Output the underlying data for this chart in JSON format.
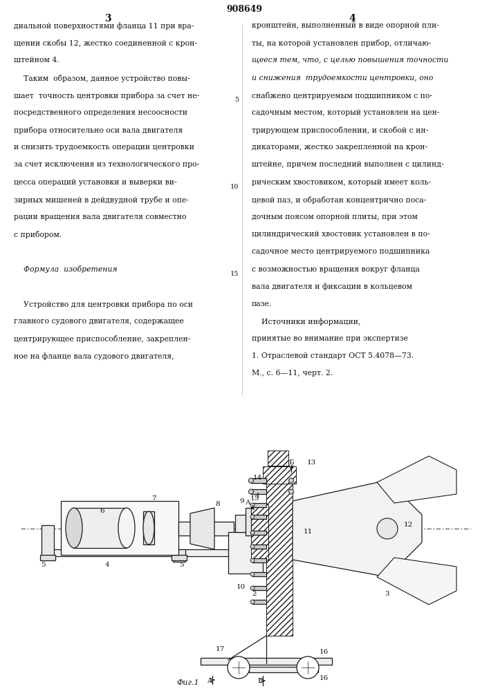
{
  "patent_number": "908649",
  "page_left": "3",
  "page_right": "4",
  "bg_color": "#ffffff",
  "line_color": "#1a1a1a",
  "text_color": "#111111",
  "fig_label": "Фиг.1",
  "col1_lines": [
    "диальной поверхностями фланца 11 при вра-",
    "щении скобы 12, жестко соединенной с крон-",
    "штейном 4.",
    "    Таким  образом, данное устройство повы-",
    "шает  точность центровки прибора за счет не-",
    "посредственного определения несоосности",
    "прибора относительно оси вала двигателя",
    "и снизить трудоемкость операции центровки",
    "за счет исключения из технологического про-",
    "цесса операций установки и выверки ви-",
    "зирных мишеней в дейдвудной трубе и опе-",
    "рации вращения вала двигателя совместно",
    "с прибором.",
    "",
    "    Формула  изобретения",
    "",
    "    Устройство для центровки прибора по оси",
    "главного судового двигателя, содержащее",
    "центрирующее приспособление, закреплен-",
    "ное на фланце вала судового двигателя,"
  ],
  "col2_lines": [
    "кронштейн, выполненный в виде опорной пли-",
    "ты, на которой установлен прибор, отличаю-",
    "щееся тем, что, с целью повышения точности",
    "и снижения  трудоемкости центровки, оно",
    "снабжено центрируемым подшипником с по-",
    "садочным местом, который установлен на цен-",
    "трирующем приспособлении, и скобой с ин-",
    "дикаторами, жестко закрепленной на крон-",
    "штейне, причем последний выполнен с цилинд-",
    "рическим хвостовиком, который имеет коль-",
    "цевой паз, и обработан концентрично поса-",
    "дочным поясом опорной плиты, при этом",
    "цилиндрический хвостовик установлен в по-",
    "садочное место центрируемого подшипника",
    "с возможностью вращения вокруг фланца",
    "вала двигателя и фиксации в кольцевом",
    "пазе.",
    "    Источники информации,",
    "принятые во внимание при экспертизе",
    "1. Отраслевой стандарт ОСТ 5.4078—73.",
    "М., с. 6—11, черт. 2."
  ]
}
